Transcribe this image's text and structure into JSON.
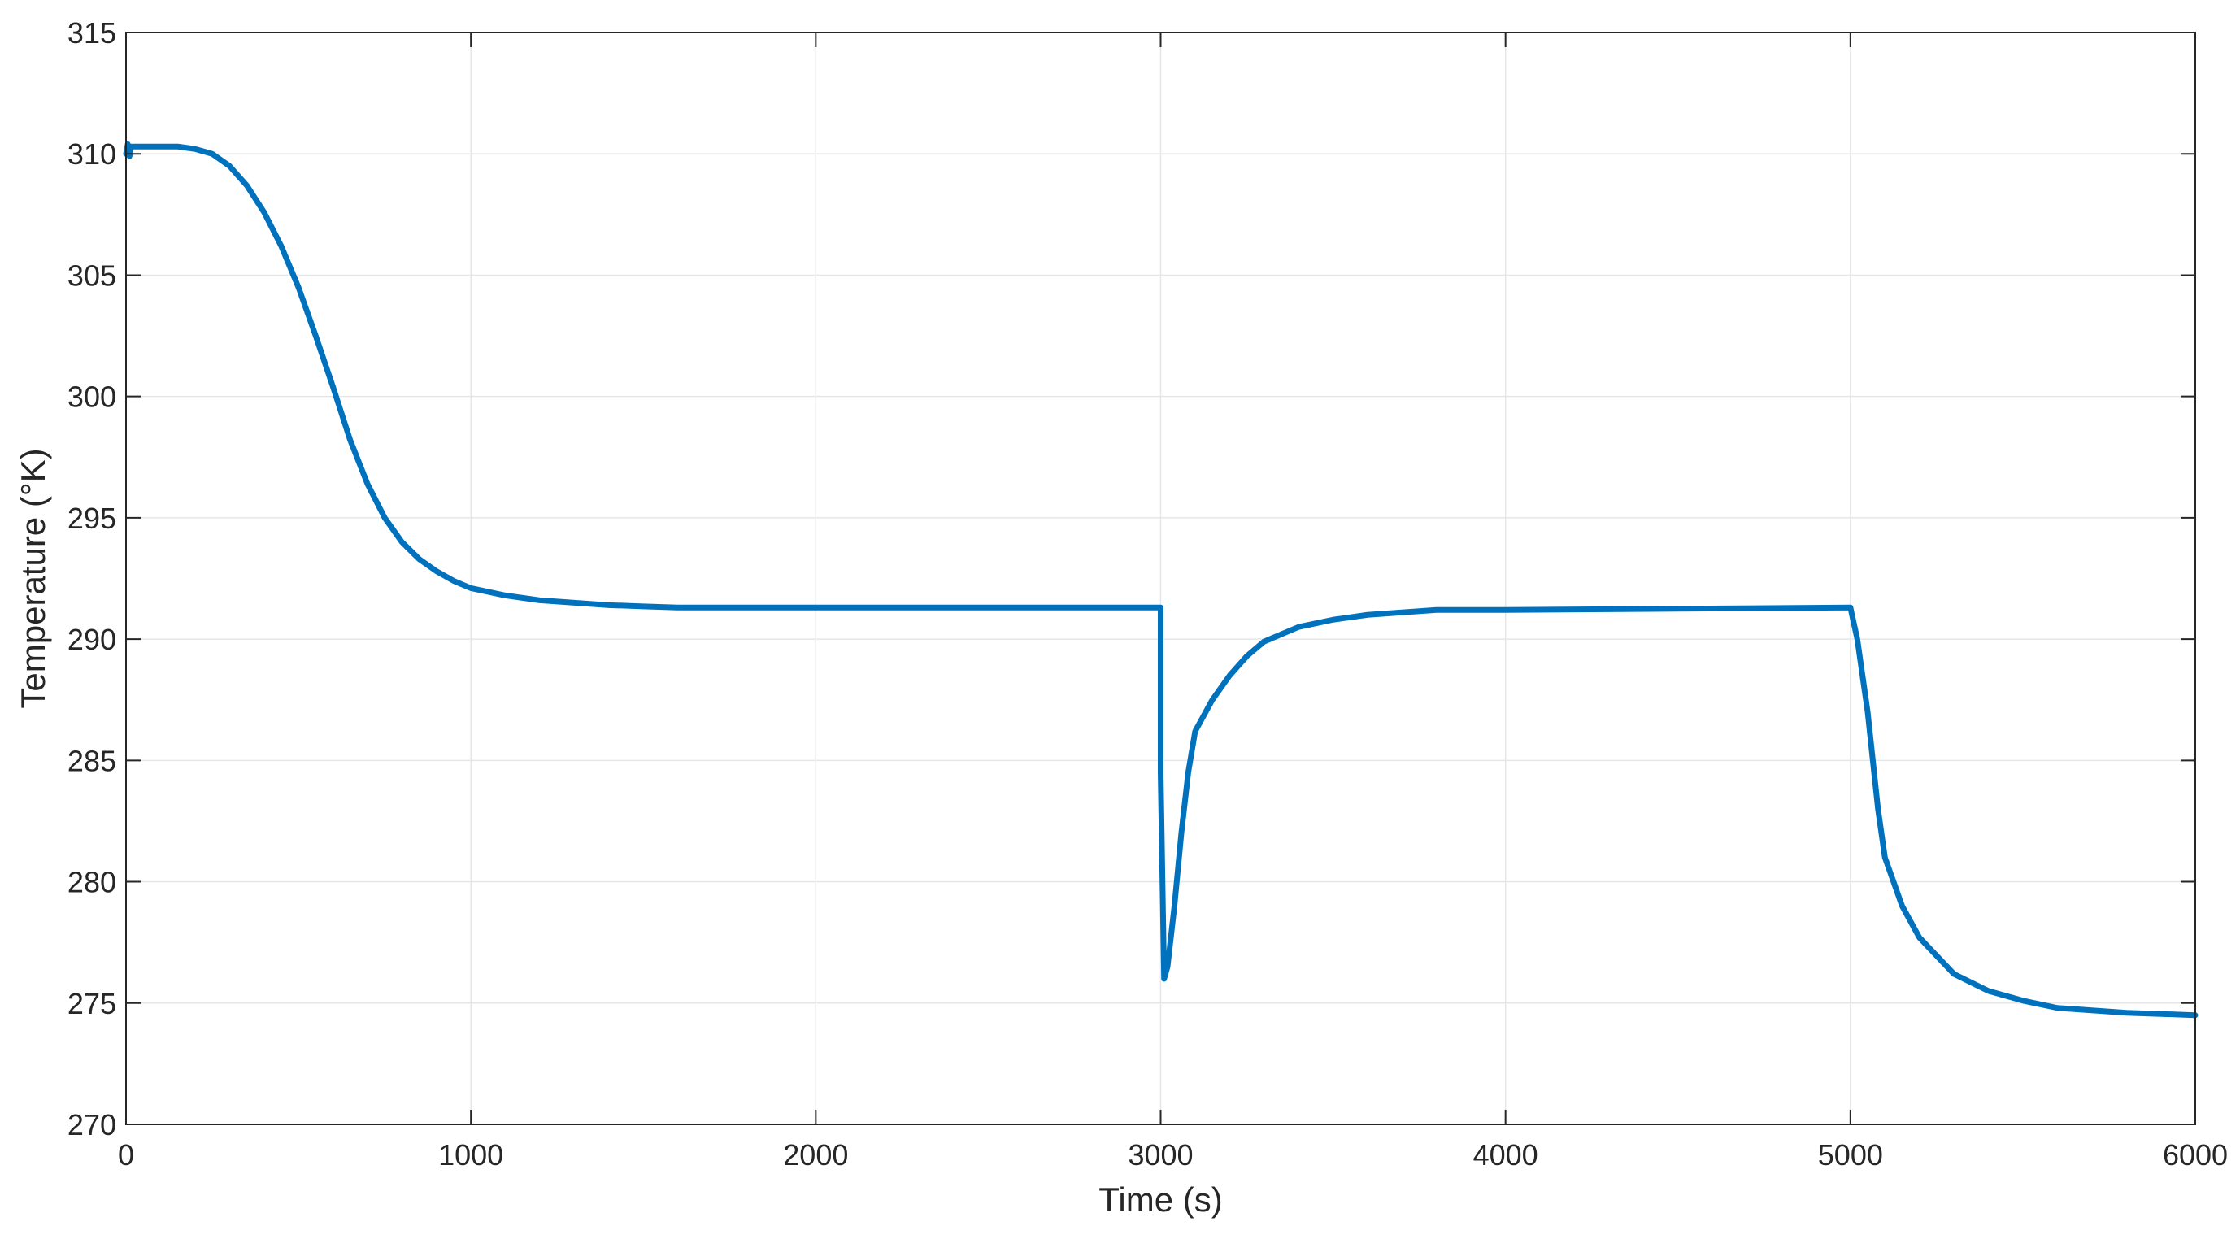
{
  "chart_data": {
    "type": "line",
    "xlabel": "Time (s)",
    "ylabel": "Temperature (°K)",
    "xlim": [
      0,
      6000
    ],
    "ylim": [
      270,
      315
    ],
    "xticks": [
      0,
      1000,
      2000,
      3000,
      4000,
      5000,
      6000
    ],
    "yticks": [
      270,
      275,
      280,
      285,
      290,
      295,
      300,
      305,
      310,
      315
    ],
    "grid": true,
    "series": [
      {
        "color": "#0072BD",
        "x": [
          0,
          5,
          10,
          15,
          25,
          50,
          100,
          150,
          200,
          250,
          300,
          350,
          400,
          450,
          500,
          550,
          600,
          650,
          700,
          750,
          800,
          850,
          900,
          950,
          1000,
          1100,
          1200,
          1300,
          1400,
          1500,
          1600,
          1800,
          2000,
          2500,
          2990,
          3000,
          3000,
          3010,
          3020,
          3040,
          3060,
          3080,
          3100,
          3150,
          3200,
          3250,
          3300,
          3400,
          3500,
          3600,
          3700,
          3800,
          4000,
          4500,
          5000,
          5020,
          5050,
          5080,
          5100,
          5150,
          5200,
          5300,
          5400,
          5500,
          5600,
          5700,
          5800,
          5900,
          6000
        ],
        "y": [
          310.0,
          310.4,
          309.9,
          310.3,
          310.3,
          310.3,
          310.3,
          310.3,
          310.2,
          310.0,
          309.5,
          308.7,
          307.6,
          306.2,
          304.5,
          302.5,
          300.4,
          298.2,
          296.4,
          295.0,
          294.0,
          293.3,
          292.8,
          292.4,
          292.1,
          291.8,
          291.6,
          291.5,
          291.4,
          291.35,
          291.3,
          291.3,
          291.3,
          291.3,
          291.3,
          291.3,
          284.5,
          276.0,
          276.5,
          279.0,
          282.0,
          284.5,
          286.2,
          287.5,
          288.5,
          289.3,
          289.9,
          290.5,
          290.8,
          291.0,
          291.1,
          291.2,
          291.2,
          291.25,
          291.3,
          290.0,
          287.0,
          283.0,
          281.0,
          279.0,
          277.7,
          276.2,
          275.5,
          275.1,
          274.8,
          274.7,
          274.6,
          274.55,
          274.5
        ]
      }
    ]
  }
}
